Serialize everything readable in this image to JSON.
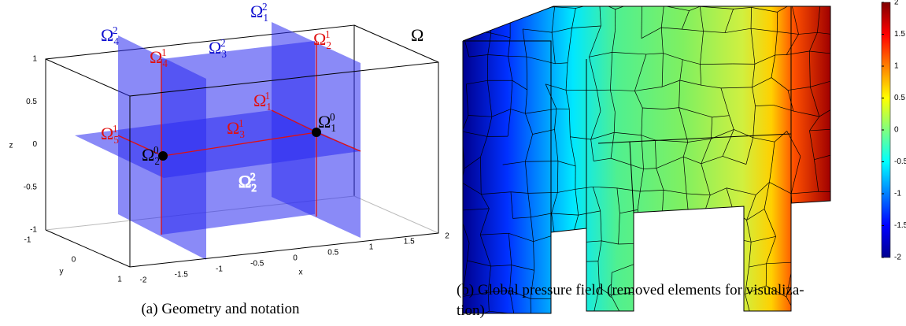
{
  "panel_a": {
    "axes": {
      "x_label": "x",
      "y_label": "y",
      "z_label": "z",
      "xticks": [
        -2,
        -1.5,
        -1,
        -0.5,
        0,
        0.5,
        1,
        1.5,
        2
      ],
      "yticks": [
        -1,
        0,
        1
      ],
      "zticks": [
        -1,
        -0.5,
        0,
        0.5,
        1
      ]
    },
    "labels": [
      {
        "symbol": "Ω",
        "sub": "4",
        "sup": "2",
        "color": "#1010d0"
      },
      {
        "symbol": "Ω",
        "sub": "1",
        "sup": "2",
        "color": "#1010d0"
      },
      {
        "symbol": "Ω",
        "sub": "3",
        "sup": "2",
        "color": "#1010d0"
      },
      {
        "symbol": "Ω",
        "sub": "4",
        "sup": "1",
        "color": "#e01010"
      },
      {
        "symbol": "Ω",
        "sub": "2",
        "sup": "1",
        "color": "#e01010"
      },
      {
        "symbol": "Ω",
        "sub": "1",
        "sup": "1",
        "color": "#e01010"
      },
      {
        "symbol": "Ω",
        "sub": "5",
        "sup": "1",
        "color": "#e01010"
      },
      {
        "symbol": "Ω",
        "sub": "3",
        "sup": "1",
        "color": "#e01010"
      },
      {
        "symbol": "Ω",
        "sub": "1",
        "sup": "0",
        "color": "#000000"
      },
      {
        "symbol": "Ω",
        "sub": "2",
        "sup": "0",
        "color": "#000000"
      },
      {
        "symbol": "Ω",
        "sub": "2",
        "sup": "2",
        "color": "#ffffff"
      }
    ],
    "domain_label": "Ω",
    "caption": "(a) Geometry and notation"
  },
  "panel_b": {
    "colorbar": {
      "range": [
        -2,
        2
      ],
      "ticks": [
        2,
        1.5,
        1,
        0.5,
        0,
        -0.5,
        -1,
        -1.5,
        -2
      ]
    },
    "caption_lines": [
      "(b) Global pressure field (removed elements for visualiza-",
      "tion)"
    ]
  }
}
